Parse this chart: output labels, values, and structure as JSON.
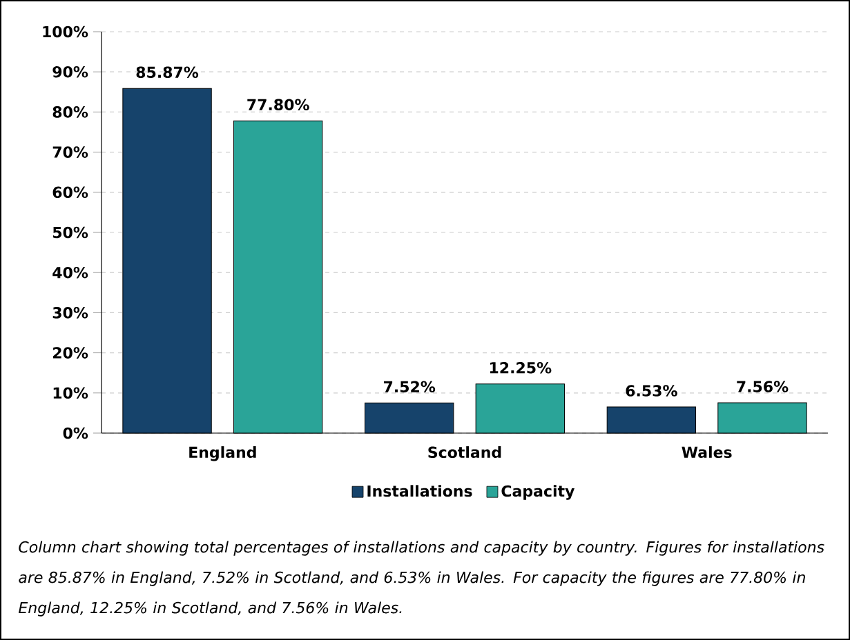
{
  "chart_data": {
    "type": "bar",
    "categories": [
      "England",
      "Scotland",
      "Wales"
    ],
    "series": [
      {
        "name": "Installations",
        "color": "#16436b",
        "values": [
          85.87,
          7.52,
          6.53
        ],
        "value_labels": [
          "85.87%",
          "7.52%",
          "6.53%"
        ]
      },
      {
        "name": "Capacity",
        "color": "#2aa498",
        "values": [
          77.8,
          12.25,
          7.56
        ],
        "value_labels": [
          "77.80%",
          "12.25%",
          "7.56%"
        ]
      }
    ],
    "ylim": [
      0,
      100
    ],
    "yticks": [
      {
        "value": 0,
        "label": "0%"
      },
      {
        "value": 10,
        "label": "10%"
      },
      {
        "value": 20,
        "label": "20%"
      },
      {
        "value": 30,
        "label": "30%"
      },
      {
        "value": 40,
        "label": "40%"
      },
      {
        "value": 50,
        "label": "50%"
      },
      {
        "value": 60,
        "label": "60%"
      },
      {
        "value": 70,
        "label": "70%"
      },
      {
        "value": 80,
        "label": "80%"
      },
      {
        "value": 90,
        "label": "90%"
      },
      {
        "value": 100,
        "label": "100%"
      }
    ],
    "grid": "y",
    "legend": "bottom",
    "annotations": [
      "Column chart showing total percentages of installations and capacity by country. Figures for installations are 85.87% in England, 7.52% in Scotland, and 6.53% in Wales. For capacity the figures are 77.80% in England, 12.25% in Scotland, and 7.56% in Wales."
    ]
  }
}
